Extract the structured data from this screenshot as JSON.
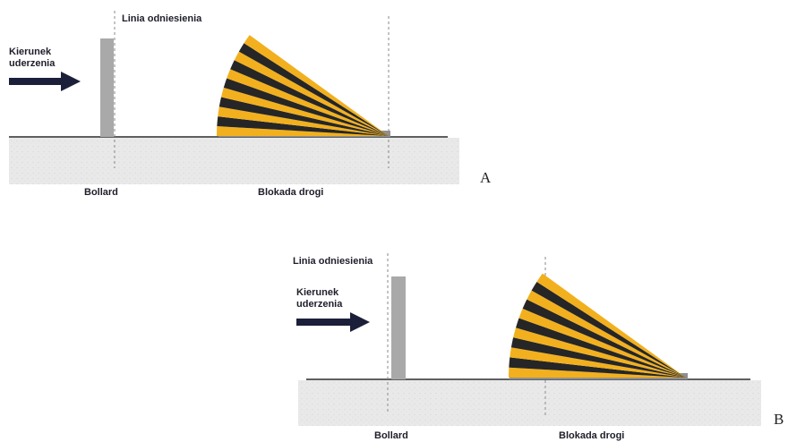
{
  "diagrams": [
    {
      "id": "A",
      "panel_label": "A",
      "reference_line_label": "Linia odniesienia",
      "impact_direction_label": [
        "Kierunek",
        "uderzenia"
      ],
      "bollard_label": "Bollard",
      "roadblock_label": "Blokada drogi"
    },
    {
      "id": "B",
      "panel_label": "B",
      "reference_line_label": "Linia odniesienia",
      "impact_direction_label": [
        "Kierunek",
        "uderzenia"
      ],
      "bollard_label": "Bollard",
      "roadblock_label": "Blokada drogi"
    }
  ],
  "colors": {
    "ground": "#e7e7e7",
    "ground_line": "#2a2a2a",
    "bollard": "#a9a9a9",
    "arrow": "#1c1f3a",
    "stripe_dark": "#262626",
    "stripe_yellow": "#f2b01e",
    "dashed_line": "#8a8a8a"
  }
}
